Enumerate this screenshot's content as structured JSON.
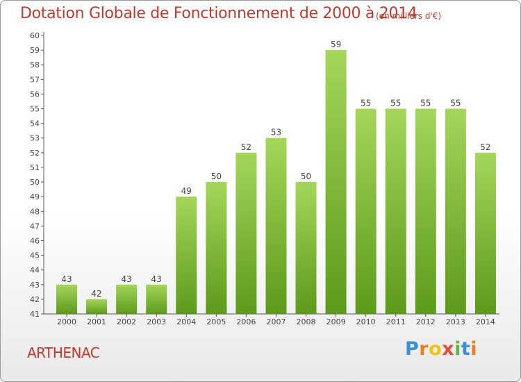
{
  "title": "Dotation Globale de Fonctionnement de 2000 à 2014",
  "subtitle": "(en milliers d'€)",
  "town": "ARTHENAC",
  "logo": {
    "letters": [
      "P",
      "r",
      "o",
      "x",
      "i",
      "t",
      "i"
    ],
    "colors": [
      "#3a8fd6",
      "#e67e22",
      "#f1c40f",
      "#e74c3c",
      "#5db84a",
      "#3a8fd6",
      "#e67e22"
    ]
  },
  "colors": {
    "title": "#c0392b",
    "bar_top": "#a4d65a",
    "bar_bottom": "#5c9a1a"
  },
  "chart_data": {
    "type": "bar",
    "categories": [
      "2000",
      "2001",
      "2002",
      "2003",
      "2004",
      "2005",
      "2006",
      "2007",
      "2008",
      "2009",
      "2010",
      "2011",
      "2012",
      "2013",
      "2014"
    ],
    "values": [
      43,
      42,
      43,
      43,
      49,
      50,
      52,
      53,
      50,
      59,
      55,
      55,
      55,
      55,
      52
    ],
    "ylim": [
      41,
      60
    ],
    "yticks": [
      41,
      42,
      43,
      44,
      45,
      46,
      47,
      48,
      49,
      50,
      51,
      52,
      53,
      54,
      55,
      56,
      57,
      58,
      59,
      60
    ],
    "grid": false,
    "legend": "none"
  }
}
